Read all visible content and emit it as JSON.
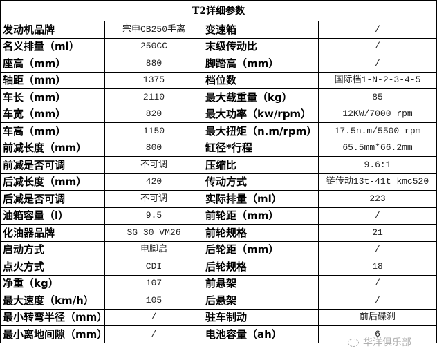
{
  "title": "T2详细参数",
  "rows": [
    [
      "发动机品牌",
      "宗申CB250手离",
      "变速箱",
      "/"
    ],
    [
      "名义排量（ml）",
      "250CC",
      "末级传动比",
      "/"
    ],
    [
      "座高（mm）",
      "880",
      "脚踏高（mm）",
      "/"
    ],
    [
      "轴距（mm）",
      "1375",
      "档位数",
      "国际档1-N-2-3-4-5"
    ],
    [
      "车长（mm）",
      "2110",
      "最大载重量（kg）",
      "85"
    ],
    [
      "车宽（mm）",
      "820",
      "最大功率（kw/rpm）",
      "12KW/7000 rpm"
    ],
    [
      "车高（mm）",
      "1150",
      "最大扭矩（n.m/rpm）",
      "17.5n.m/5500 rpm"
    ],
    [
      "前减长度（mm）",
      "800",
      "缸径*行程",
      "65.5mm*66.2mm"
    ],
    [
      "前减是否可调",
      "不可调",
      "压缩比",
      "9.6:1"
    ],
    [
      "后减长度（mm）",
      "420",
      "传动方式",
      "链传动13t-41t kmc520"
    ],
    [
      "后减是否可调",
      "不可调",
      "实际排量（ml）",
      "223"
    ],
    [
      "油箱容量（l）",
      "9.5",
      "前轮距（mm）",
      "/"
    ],
    [
      "化油器品牌",
      "SG 30 VM26",
      "前轮规格",
      "21"
    ],
    [
      "启动方式",
      "电脚启",
      "后轮距（mm）",
      "/"
    ],
    [
      "点火方式",
      "CDI",
      "后轮规格",
      "18"
    ],
    [
      "净重（kg）",
      "107",
      "前悬架",
      "/"
    ],
    [
      "最大速度（km/h）",
      "105",
      "后悬架",
      "/"
    ],
    [
      "最小转弯半径（mm）",
      "/",
      "驻车制动",
      "前后碟刹"
    ],
    [
      "最小离地间隙（mm）",
      "/",
      "电池容量（ah）",
      "6"
    ]
  ],
  "watermark": "华洋俱乐部"
}
